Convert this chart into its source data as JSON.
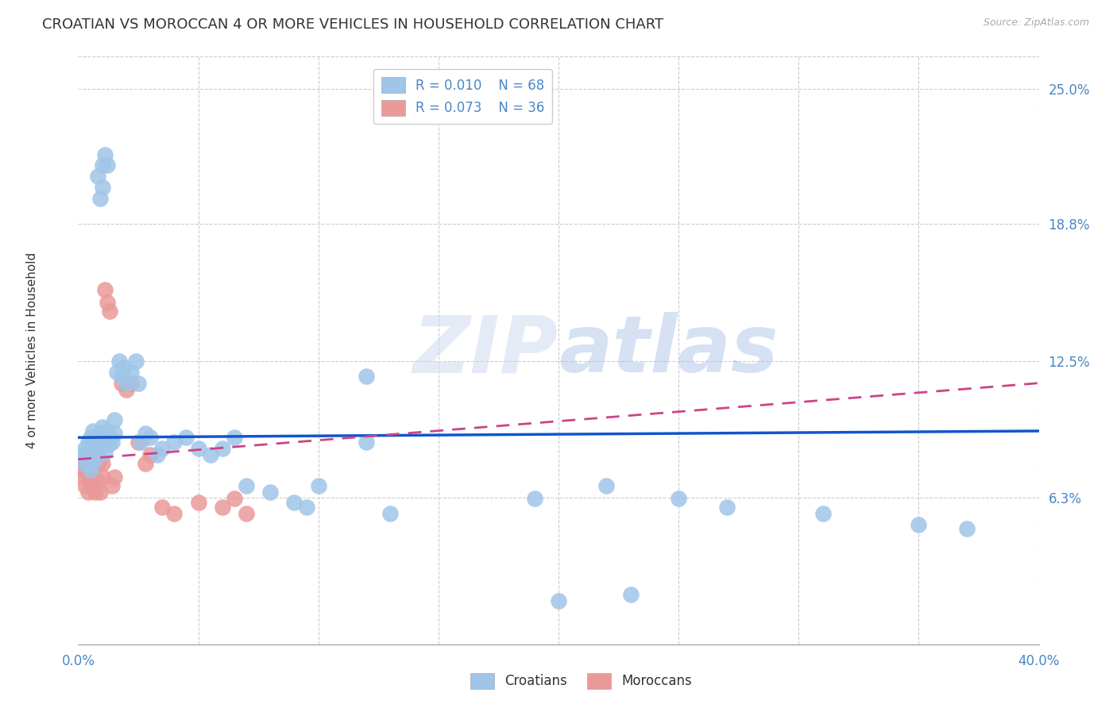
{
  "title": "CROATIAN VS MOROCCAN 4 OR MORE VEHICLES IN HOUSEHOLD CORRELATION CHART",
  "source": "Source: ZipAtlas.com",
  "ylabel": "4 or more Vehicles in Household",
  "watermark": "ZIPatlas",
  "xlim": [
    0.0,
    0.4
  ],
  "ylim": [
    -0.005,
    0.265
  ],
  "xticks": [
    0.0,
    0.05,
    0.1,
    0.15,
    0.2,
    0.25,
    0.3,
    0.35,
    0.4
  ],
  "xticklabels": [
    "0.0%",
    "",
    "",
    "",
    "",
    "",
    "",
    "",
    "40.0%"
  ],
  "yticks_right": [
    0.0625,
    0.125,
    0.188,
    0.25
  ],
  "ytick_labels_right": [
    "6.3%",
    "12.5%",
    "18.8%",
    "25.0%"
  ],
  "grid_color": "#cccccc",
  "background_color": "#ffffff",
  "blue_color": "#9fc5e8",
  "pink_color": "#ea9999",
  "trend_blue_color": "#1155cc",
  "trend_pink_color": "#cc4488",
  "legend_R_blue": "R = 0.010",
  "legend_N_blue": "N = 68",
  "legend_R_pink": "R = 0.073",
  "legend_N_pink": "N = 36",
  "axis_label_color": "#4a86c8",
  "title_fontsize": 13,
  "axis_fontsize": 11,
  "tick_fontsize": 11,
  "cr_x": [
    0.002,
    0.003,
    0.003,
    0.004,
    0.004,
    0.005,
    0.005,
    0.006,
    0.006,
    0.007,
    0.007,
    0.008,
    0.008,
    0.009,
    0.009,
    0.01,
    0.01,
    0.011,
    0.011,
    0.012,
    0.012,
    0.013,
    0.013,
    0.014,
    0.015,
    0.015,
    0.016,
    0.017,
    0.018,
    0.019,
    0.02,
    0.022,
    0.024,
    0.025,
    0.026,
    0.028,
    0.03,
    0.033,
    0.035,
    0.04,
    0.045,
    0.05,
    0.055,
    0.06,
    0.065,
    0.07,
    0.08,
    0.09,
    0.095,
    0.1,
    0.12,
    0.13,
    0.19,
    0.22,
    0.25,
    0.27,
    0.31,
    0.35,
    0.37,
    0.008,
    0.009,
    0.01,
    0.01,
    0.011,
    0.012,
    0.12,
    0.2,
    0.23
  ],
  "cr_y": [
    0.082,
    0.078,
    0.085,
    0.08,
    0.088,
    0.075,
    0.09,
    0.083,
    0.093,
    0.088,
    0.08,
    0.09,
    0.084,
    0.086,
    0.092,
    0.088,
    0.095,
    0.09,
    0.083,
    0.088,
    0.093,
    0.09,
    0.087,
    0.088,
    0.092,
    0.098,
    0.12,
    0.125,
    0.118,
    0.122,
    0.115,
    0.12,
    0.125,
    0.115,
    0.088,
    0.092,
    0.09,
    0.082,
    0.085,
    0.088,
    0.09,
    0.085,
    0.082,
    0.085,
    0.09,
    0.068,
    0.065,
    0.06,
    0.058,
    0.068,
    0.118,
    0.055,
    0.062,
    0.068,
    0.062,
    0.058,
    0.055,
    0.05,
    0.048,
    0.21,
    0.2,
    0.215,
    0.205,
    0.22,
    0.215,
    0.088,
    0.015,
    0.018
  ],
  "mo_x": [
    0.001,
    0.002,
    0.002,
    0.003,
    0.003,
    0.004,
    0.004,
    0.005,
    0.005,
    0.006,
    0.006,
    0.007,
    0.007,
    0.008,
    0.008,
    0.009,
    0.009,
    0.01,
    0.01,
    0.011,
    0.012,
    0.013,
    0.014,
    0.015,
    0.018,
    0.02,
    0.022,
    0.025,
    0.028,
    0.03,
    0.035,
    0.04,
    0.05,
    0.06,
    0.065,
    0.07
  ],
  "mo_y": [
    0.075,
    0.072,
    0.08,
    0.068,
    0.078,
    0.065,
    0.075,
    0.07,
    0.08,
    0.068,
    0.075,
    0.065,
    0.08,
    0.07,
    0.078,
    0.065,
    0.08,
    0.072,
    0.078,
    0.158,
    0.152,
    0.148,
    0.068,
    0.072,
    0.115,
    0.112,
    0.115,
    0.088,
    0.078,
    0.082,
    0.058,
    0.055,
    0.06,
    0.058,
    0.062,
    0.055
  ],
  "blue_trend_x": [
    0.0,
    0.4
  ],
  "blue_trend_y": [
    0.09,
    0.093
  ],
  "pink_trend_x": [
    0.0,
    0.4
  ],
  "pink_trend_y": [
    0.08,
    0.115
  ]
}
